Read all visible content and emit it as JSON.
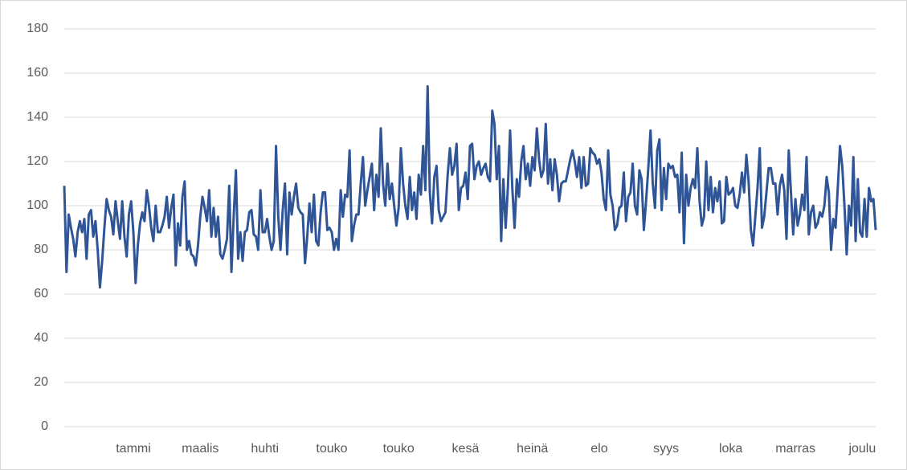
{
  "chart_data": {
    "type": "line",
    "color": "#2f5597",
    "values": [
      109,
      70,
      96,
      90,
      85,
      77,
      88,
      93,
      88,
      94,
      76,
      96,
      98,
      86,
      93,
      80,
      63,
      75,
      90,
      103,
      98,
      95,
      87,
      102,
      93,
      85,
      102,
      86,
      77,
      96,
      102,
      88,
      65,
      82,
      92,
      97,
      93,
      107,
      100,
      90,
      84,
      100,
      88,
      88,
      91,
      95,
      104,
      90,
      99,
      105,
      73,
      92,
      82,
      104,
      111,
      80,
      84,
      78,
      77,
      73,
      82,
      95,
      104,
      99,
      93,
      107,
      86,
      99,
      86,
      95,
      78,
      76,
      80,
      85,
      109,
      70,
      95,
      116,
      76,
      88,
      75,
      88,
      89,
      97,
      98,
      87,
      86,
      80,
      107,
      88,
      88,
      94,
      86,
      80,
      84,
      127,
      95,
      80,
      98,
      110,
      78,
      106,
      96,
      104,
      110,
      99,
      97,
      96,
      74,
      86,
      101,
      88,
      105,
      84,
      82,
      97,
      106,
      106,
      89,
      90,
      88,
      80,
      85,
      80,
      107,
      95,
      105,
      104,
      125,
      84,
      91,
      96,
      96,
      110,
      122,
      100,
      107,
      113,
      119,
      98,
      114,
      104,
      135,
      110,
      100,
      119,
      103,
      110,
      100,
      91,
      99,
      126,
      110,
      100,
      94,
      113,
      98,
      106,
      94,
      114,
      105,
      127,
      107,
      154,
      106,
      92,
      113,
      118,
      98,
      93,
      95,
      97,
      114,
      126,
      114,
      118,
      128,
      98,
      108,
      109,
      115,
      103,
      127,
      128,
      112,
      118,
      120,
      114,
      117,
      119,
      113,
      111,
      143,
      137,
      112,
      127,
      84,
      112,
      90,
      108,
      134,
      108,
      90,
      112,
      104,
      120,
      127,
      112,
      119,
      109,
      122,
      116,
      135,
      121,
      113,
      116,
      137,
      110,
      121,
      107,
      121,
      114,
      102,
      110,
      111,
      111,
      116,
      121,
      125,
      120,
      113,
      122,
      108,
      122,
      109,
      110,
      126,
      124,
      123,
      119,
      121,
      115,
      103,
      98,
      125,
      105,
      100,
      89,
      91,
      99,
      100,
      115,
      93,
      104,
      106,
      119,
      100,
      96,
      116,
      112,
      89,
      102,
      117,
      134,
      110,
      99,
      125,
      130,
      98,
      117,
      103,
      119,
      117,
      118,
      113,
      114,
      97,
      124,
      83,
      114,
      100,
      108,
      112,
      108,
      126,
      102,
      91,
      95,
      120,
      98,
      113,
      97,
      108,
      102,
      111,
      92,
      93,
      113,
      105,
      106,
      108,
      100,
      99,
      105,
      115,
      106,
      123,
      111,
      89,
      82,
      95,
      108,
      126,
      90,
      95,
      106,
      117,
      117,
      110,
      110,
      96,
      109,
      114,
      107,
      85,
      125,
      106,
      87,
      103,
      91,
      96,
      105,
      98,
      122,
      87,
      97,
      100,
      90,
      92,
      97,
      95,
      100,
      113,
      106,
      80,
      94,
      90,
      108,
      127,
      118,
      100,
      78,
      100,
      91,
      122,
      84,
      112,
      88,
      86,
      103,
      86,
      108,
      102,
      103,
      89
    ],
    "xlim": [
      0,
      364
    ],
    "xticks": [
      {
        "value": 31,
        "label": "tammi"
      },
      {
        "value": 61,
        "label": "maalis"
      },
      {
        "value": 90,
        "label": "huhti"
      },
      {
        "value": 120,
        "label": "touko"
      },
      {
        "value": 150,
        "label": "touko"
      },
      {
        "value": 180,
        "label": "kesä"
      },
      {
        "value": 210,
        "label": "heinä"
      },
      {
        "value": 240,
        "label": "elo"
      },
      {
        "value": 270,
        "label": "syys"
      },
      {
        "value": 299,
        "label": "loka"
      },
      {
        "value": 328,
        "label": "marras"
      },
      {
        "value": 358,
        "label": "joulu"
      }
    ],
    "ylim": [
      0,
      180
    ],
    "yticks": [
      0,
      20,
      40,
      60,
      80,
      100,
      120,
      140,
      160,
      180
    ],
    "grid": true
  }
}
